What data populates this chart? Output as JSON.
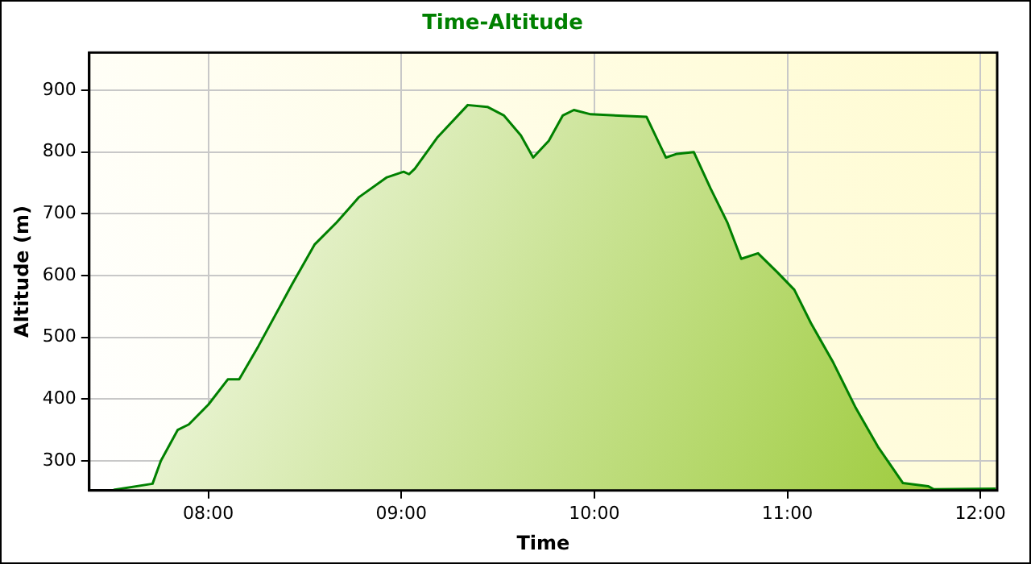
{
  "chart_data": {
    "type": "area",
    "title": "Time-Altitude",
    "xlabel": "Time",
    "ylabel": "Altitude (m)",
    "x": [
      7.509,
      7.711,
      7.754,
      7.841,
      7.899,
      8.0,
      8.101,
      8.16,
      8.26,
      8.434,
      8.55,
      8.665,
      8.781,
      8.925,
      9.012,
      9.04,
      9.07,
      9.185,
      9.344,
      9.446,
      9.532,
      9.619,
      9.683,
      9.764,
      9.836,
      9.894,
      9.981,
      10.27,
      10.371,
      10.428,
      10.515,
      10.602,
      10.689,
      10.761,
      10.848,
      10.949,
      11.036,
      11.122,
      11.238,
      11.354,
      11.469,
      11.599,
      11.729,
      11.759,
      12.08
    ],
    "series": [
      {
        "color": "#008000",
        "values": [
          253,
          263,
          300,
          350,
          359,
          391,
          432,
          432,
          486,
          586,
          650,
          686,
          727,
          759,
          768,
          764,
          773,
          823,
          876,
          873,
          859,
          827,
          791,
          818,
          859,
          868,
          861,
          857,
          791,
          797,
          800,
          741,
          686,
          627,
          636,
          605,
          577,
          523,
          459,
          386,
          323,
          264,
          259,
          254,
          255
        ]
      }
    ],
    "xlim": [
      7.383,
      12.087
    ],
    "xticks": [
      {
        "value": 8,
        "label": "08:00"
      },
      {
        "value": 9,
        "label": "09:00"
      },
      {
        "value": 10,
        "label": "10:00"
      },
      {
        "value": 11,
        "label": "11:00"
      },
      {
        "value": 12,
        "label": "12:00"
      }
    ],
    "ylim": [
      252,
      961
    ],
    "yticks": [
      300,
      400,
      500,
      600,
      700,
      800,
      900
    ],
    "grid": true,
    "legend": false,
    "marker": "none",
    "line_style": "solid"
  }
}
